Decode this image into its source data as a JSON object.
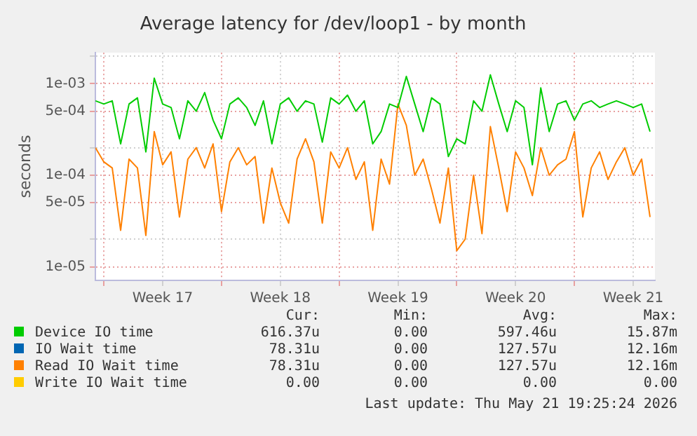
{
  "chart_data": {
    "type": "line",
    "title": "Average latency for /dev/loop1 - by month",
    "ylabel": "seconds",
    "log": true,
    "grid": true,
    "legend": "bottom",
    "marker": "none",
    "line_style": "solid",
    "x": [
      "2026-04-19T12:00",
      "2026-04-20",
      "2026-04-20T12:00",
      "2026-04-21",
      "2026-04-21T12:00",
      "2026-04-22",
      "2026-04-22T12:00",
      "2026-04-23",
      "2026-04-23T12:00",
      "2026-04-24",
      "2026-04-24T12:00",
      "2026-04-25",
      "2026-04-25T12:00",
      "2026-04-26",
      "2026-04-26T12:00",
      "2026-04-27",
      "2026-04-27T12:00",
      "2026-04-28",
      "2026-04-28T12:00",
      "2026-04-29",
      "2026-04-29T12:00",
      "2026-04-30",
      "2026-04-30T12:00",
      "2026-05-01",
      "2026-05-01T12:00",
      "2026-05-02",
      "2026-05-02T12:00",
      "2026-05-03",
      "2026-05-03T12:00",
      "2026-05-04",
      "2026-05-04T12:00",
      "2026-05-05",
      "2026-05-05T12:00",
      "2026-05-06",
      "2026-05-06T12:00",
      "2026-05-07",
      "2026-05-07T12:00",
      "2026-05-08",
      "2026-05-08T12:00",
      "2026-05-09",
      "2026-05-09T12:00",
      "2026-05-10",
      "2026-05-10T12:00",
      "2026-05-11",
      "2026-05-11T12:00",
      "2026-05-12",
      "2026-05-12T12:00",
      "2026-05-13",
      "2026-05-13T12:00",
      "2026-05-14",
      "2026-05-14T12:00",
      "2026-05-15",
      "2026-05-15T12:00",
      "2026-05-16",
      "2026-05-16T12:00",
      "2026-05-17",
      "2026-05-17T12:00",
      "2026-05-18",
      "2026-05-18T12:00",
      "2026-05-19",
      "2026-05-19T12:00",
      "2026-05-20",
      "2026-05-20T12:00",
      "2026-05-21",
      "2026-05-21T12:00",
      "2026-05-22",
      "2026-05-22T12:00"
    ],
    "xlim": [
      "2026-04-19T12:00",
      "2026-05-22T19:00"
    ],
    "xticks": [
      {
        "value": "2026-04-20",
        "label": null
      },
      {
        "value": "2026-04-23T12:00",
        "label": "Week 17"
      },
      {
        "value": "2026-04-27",
        "label": null
      },
      {
        "value": "2026-04-30T12:00",
        "label": "Week 18"
      },
      {
        "value": "2026-05-04",
        "label": null
      },
      {
        "value": "2026-05-07T12:00",
        "label": "Week 19"
      },
      {
        "value": "2026-05-11",
        "label": null
      },
      {
        "value": "2026-05-14T12:00",
        "label": "Week 20"
      },
      {
        "value": "2026-05-18",
        "label": null
      },
      {
        "value": "2026-05-21T12:00",
        "label": "Week 21"
      }
    ],
    "ylim": [
      7.1e-06,
      0.00218
    ],
    "yticks": [
      {
        "value": 1e-05,
        "label": "1e-05"
      },
      {
        "value": 2e-05,
        "label": null
      },
      {
        "value": 5e-05,
        "label": "5e-05"
      },
      {
        "value": 0.0001,
        "label": "1e-04"
      },
      {
        "value": 0.0002,
        "label": null
      },
      {
        "value": 0.0005,
        "label": "5e-04"
      },
      {
        "value": 0.001,
        "label": "1e-03"
      },
      {
        "value": 0.002,
        "label": null
      }
    ],
    "series": [
      {
        "name": "Device IO time",
        "color": "#00cc00",
        "values": [
          0.00065,
          0.0006,
          0.00065,
          0.00022,
          0.0006,
          0.0007,
          0.00018,
          0.00115,
          0.0006,
          0.00055,
          0.00025,
          0.00065,
          0.0005,
          0.0008,
          0.0004,
          0.00025,
          0.0006,
          0.0007,
          0.00055,
          0.00035,
          0.00065,
          0.00022,
          0.0006,
          0.0007,
          0.0005,
          0.00065,
          0.0006,
          0.00023,
          0.0007,
          0.0006,
          0.00075,
          0.0005,
          0.00065,
          0.00022,
          0.0003,
          0.0006,
          0.00055,
          0.0012,
          0.0006,
          0.0003,
          0.0007,
          0.0006,
          0.00016,
          0.00025,
          0.00022,
          0.00065,
          0.0005,
          0.00125,
          0.0006,
          0.0003,
          0.00065,
          0.00055,
          0.00013,
          0.0009,
          0.0003,
          0.0006,
          0.00065,
          0.0004,
          0.0006,
          0.00065,
          0.00055,
          0.0006,
          0.00065,
          0.0006,
          0.00055,
          0.0006,
          0.0003
        ]
      },
      {
        "name": "IO Wait time",
        "color": "#0066b3",
        "values": [
          null,
          null,
          null,
          null,
          null,
          null,
          null,
          null,
          null,
          null,
          null,
          null,
          null,
          null,
          null,
          null,
          null,
          null,
          null,
          null,
          null,
          null,
          null,
          null,
          null,
          null,
          null,
          null,
          null,
          null,
          null,
          null,
          null,
          null,
          null,
          null,
          null,
          null,
          null,
          null,
          null,
          null,
          null,
          null,
          null,
          null,
          null,
          null,
          null,
          null,
          null,
          null,
          null,
          null,
          null,
          null,
          null,
          null,
          null,
          null,
          null,
          null,
          null,
          null,
          null,
          null,
          null
        ]
      },
      {
        "name": "Read IO Wait time",
        "color": "#ff8000",
        "values": [
          0.0002,
          0.00014,
          0.00012,
          2.5e-05,
          0.00015,
          0.00012,
          2.2e-05,
          0.0003,
          0.00013,
          0.00018,
          3.5e-05,
          0.00015,
          0.0002,
          0.00012,
          0.00022,
          4e-05,
          0.00014,
          0.0002,
          0.00013,
          0.00016,
          3e-05,
          0.00012,
          5e-05,
          3e-05,
          0.00015,
          0.00025,
          0.00014,
          3e-05,
          0.00018,
          0.00012,
          0.0002,
          9e-05,
          0.00014,
          2.5e-05,
          0.00015,
          8e-05,
          0.0006,
          0.00035,
          0.0001,
          0.00015,
          7e-05,
          3e-05,
          0.00012,
          1.5e-05,
          2e-05,
          0.0001,
          2.3e-05,
          0.00034,
          0.00012,
          4e-05,
          0.00018,
          0.00012,
          6e-05,
          0.0002,
          0.0001,
          0.00013,
          0.00015,
          0.0003,
          3.5e-05,
          0.00012,
          0.00018,
          9e-05,
          0.00014,
          0.0002,
          0.0001,
          0.00015,
          3.5e-05
        ]
      },
      {
        "name": "Write IO Wait time",
        "color": "#ffcc00",
        "values": [
          null,
          null,
          null,
          null,
          null,
          null,
          null,
          null,
          null,
          null,
          null,
          null,
          null,
          null,
          null,
          null,
          null,
          null,
          null,
          null,
          null,
          null,
          null,
          null,
          null,
          null,
          null,
          null,
          null,
          null,
          null,
          null,
          null,
          null,
          null,
          null,
          null,
          null,
          null,
          null,
          null,
          null,
          null,
          null,
          null,
          null,
          null,
          null,
          null,
          null,
          null,
          null,
          null,
          null,
          null,
          null,
          null,
          null,
          null,
          null,
          null,
          null,
          null,
          null,
          null,
          null,
          null
        ]
      }
    ],
    "annotations": [
      "Cur:",
      "Min:",
      "Avg:",
      "Max:",
      "616.37u",
      "0.00",
      "597.46u",
      "15.87m",
      "78.31u",
      "0.00",
      "127.57u",
      "12.16m",
      "78.31u",
      "0.00",
      "127.57u",
      "12.16m",
      "0.00",
      "0.00",
      "0.00",
      "0.00",
      "Last update: Thu May 21 19:25:24 2026"
    ]
  }
}
